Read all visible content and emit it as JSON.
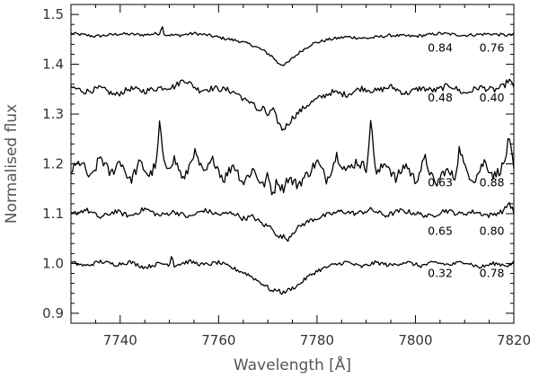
{
  "chart_data": {
    "type": "line",
    "xlabel": "Wavelength [Å]",
    "ylabel": "Normalised flux",
    "xlim": [
      7730,
      7820
    ],
    "ylim": [
      0.88,
      1.52
    ],
    "xticks": [
      7740,
      7760,
      7780,
      7800,
      7820
    ],
    "xtick_labels": [
      "7740",
      "7760",
      "7780",
      "7800",
      "7820"
    ],
    "yticks": [
      0.9,
      1.0,
      1.1,
      1.2,
      1.3,
      1.4,
      1.5
    ],
    "ytick_labels": [
      "0.9",
      "1.0",
      "1.1",
      "1.2",
      "1.3",
      "1.4",
      "1.5"
    ],
    "grid": false,
    "series": [
      {
        "baseline": 1.46,
        "annotation": [
          "0.84",
          "0.76"
        ],
        "annotation_xy": [
          [
            7802.5,
            1.425
          ],
          [
            7813,
            1.425
          ]
        ],
        "x": [
          7730,
          7735,
          7740,
          7745,
          7748,
          7748.5,
          7749,
          7752,
          7755,
          7758,
          7761,
          7764,
          7767,
          7769,
          7771,
          7772,
          7773,
          7774,
          7775,
          7777,
          7779,
          7782,
          7786,
          7790,
          7795,
          7800,
          7805,
          7810,
          7815,
          7819,
          7820
        ],
        "y": [
          1.462,
          1.456,
          1.461,
          1.459,
          1.462,
          1.478,
          1.459,
          1.458,
          1.462,
          1.458,
          1.452,
          1.447,
          1.438,
          1.428,
          1.415,
          1.403,
          1.399,
          1.402,
          1.412,
          1.428,
          1.441,
          1.449,
          1.455,
          1.452,
          1.458,
          1.456,
          1.462,
          1.458,
          1.461,
          1.458,
          1.46
        ]
      },
      {
        "baseline": 1.35,
        "annotation": [
          "0.48",
          "0.40"
        ],
        "annotation_xy": [
          [
            7802.5,
            1.325
          ],
          [
            7813,
            1.325
          ]
        ],
        "x": [
          7730,
          7733,
          7736,
          7739,
          7742,
          7745,
          7748,
          7751,
          7753,
          7756,
          7759,
          7762,
          7764,
          7766,
          7767,
          7768,
          7769,
          7770,
          7771,
          7772,
          7773,
          7774,
          7775,
          7776,
          7778,
          7780,
          7783,
          7786,
          7789,
          7792,
          7795,
          7798,
          7801,
          7804,
          7807,
          7810,
          7813,
          7816,
          7818,
          7819,
          7820
        ],
        "y": [
          1.354,
          1.345,
          1.352,
          1.338,
          1.351,
          1.346,
          1.353,
          1.355,
          1.37,
          1.348,
          1.352,
          1.348,
          1.34,
          1.322,
          1.327,
          1.303,
          1.312,
          1.297,
          1.31,
          1.286,
          1.268,
          1.279,
          1.292,
          1.301,
          1.318,
          1.33,
          1.344,
          1.339,
          1.352,
          1.346,
          1.355,
          1.341,
          1.352,
          1.347,
          1.358,
          1.341,
          1.354,
          1.348,
          1.356,
          1.37,
          1.352
        ]
      },
      {
        "baseline": 1.19,
        "annotation": [
          "0.63",
          "0.88"
        ],
        "annotation_xy": [
          [
            7802.5,
            1.155
          ],
          [
            7813,
            1.155
          ]
        ],
        "x": [
          7730,
          7732,
          7734,
          7736,
          7738,
          7740,
          7742,
          7744,
          7746,
          7747.5,
          7748,
          7749,
          7751,
          7753,
          7755,
          7757,
          7759,
          7761,
          7763,
          7765,
          7767,
          7769,
          7770,
          7771,
          7772,
          7773,
          7774,
          7776,
          7778,
          7780,
          7782,
          7784,
          7786,
          7788,
          7790,
          7791,
          7792,
          7794,
          7796,
          7798,
          7800,
          7802,
          7804,
          7806,
          7808,
          7809,
          7810,
          7812,
          7814,
          7816,
          7818,
          7819,
          7820
        ],
        "y": [
          1.185,
          1.205,
          1.168,
          1.215,
          1.178,
          1.208,
          1.165,
          1.202,
          1.175,
          1.205,
          1.285,
          1.188,
          1.21,
          1.165,
          1.225,
          1.178,
          1.21,
          1.168,
          1.2,
          1.162,
          1.19,
          1.155,
          1.175,
          1.14,
          1.168,
          1.148,
          1.172,
          1.158,
          1.178,
          1.205,
          1.168,
          1.218,
          1.185,
          1.205,
          1.192,
          1.288,
          1.175,
          1.205,
          1.168,
          1.2,
          1.165,
          1.21,
          1.155,
          1.188,
          1.172,
          1.235,
          1.19,
          1.168,
          1.205,
          1.175,
          1.198,
          1.25,
          1.188
        ]
      },
      {
        "baseline": 1.1,
        "annotation": [
          "0.65",
          "0.80"
        ],
        "annotation_xy": [
          [
            7802.5,
            1.058
          ],
          [
            7813,
            1.058
          ]
        ],
        "x": [
          7730,
          7733,
          7736,
          7739,
          7742,
          7745,
          7748,
          7751,
          7754,
          7757,
          7760,
          7763,
          7765,
          7767,
          7769,
          7771,
          7772,
          7773,
          7774,
          7775,
          7777,
          7779,
          7782,
          7785,
          7788,
          7791,
          7794,
          7797,
          7800,
          7803,
          7806,
          7809,
          7812,
          7815,
          7818,
          7819,
          7820
        ],
        "y": [
          1.098,
          1.108,
          1.092,
          1.105,
          1.095,
          1.11,
          1.096,
          1.104,
          1.093,
          1.107,
          1.098,
          1.102,
          1.09,
          1.094,
          1.078,
          1.072,
          1.052,
          1.055,
          1.048,
          1.062,
          1.078,
          1.088,
          1.097,
          1.105,
          1.1,
          1.108,
          1.096,
          1.106,
          1.101,
          1.094,
          1.107,
          1.099,
          1.104,
          1.096,
          1.106,
          1.123,
          1.103
        ]
      },
      {
        "baseline": 1.0,
        "annotation": [
          "0.32",
          "0.78"
        ],
        "annotation_xy": [
          [
            7802.5,
            0.973
          ],
          [
            7813,
            0.973
          ]
        ],
        "x": [
          7730,
          7733,
          7736,
          7739,
          7742,
          7745,
          7748,
          7750,
          7750.5,
          7751,
          7754,
          7757,
          7760,
          7763,
          7766,
          7768,
          7770,
          7771,
          7772,
          7773,
          7774,
          7776,
          7778,
          7780,
          7783,
          7786,
          7789,
          7792,
          7795,
          7798,
          7801,
          7804,
          7807,
          7810,
          7813,
          7816,
          7819,
          7820
        ],
        "y": [
          1.002,
          0.995,
          1.004,
          0.998,
          1.003,
          0.992,
          1.0,
          0.998,
          1.018,
          0.996,
          1.004,
          0.997,
          1.002,
          0.99,
          0.978,
          0.965,
          0.952,
          0.943,
          0.948,
          0.94,
          0.946,
          0.955,
          0.972,
          0.985,
          0.996,
          1.003,
          0.993,
          1.002,
          0.996,
          1.003,
          0.995,
          1.002,
          0.997,
          1.004,
          0.992,
          1.0,
          0.996,
          1.002
        ]
      }
    ]
  }
}
